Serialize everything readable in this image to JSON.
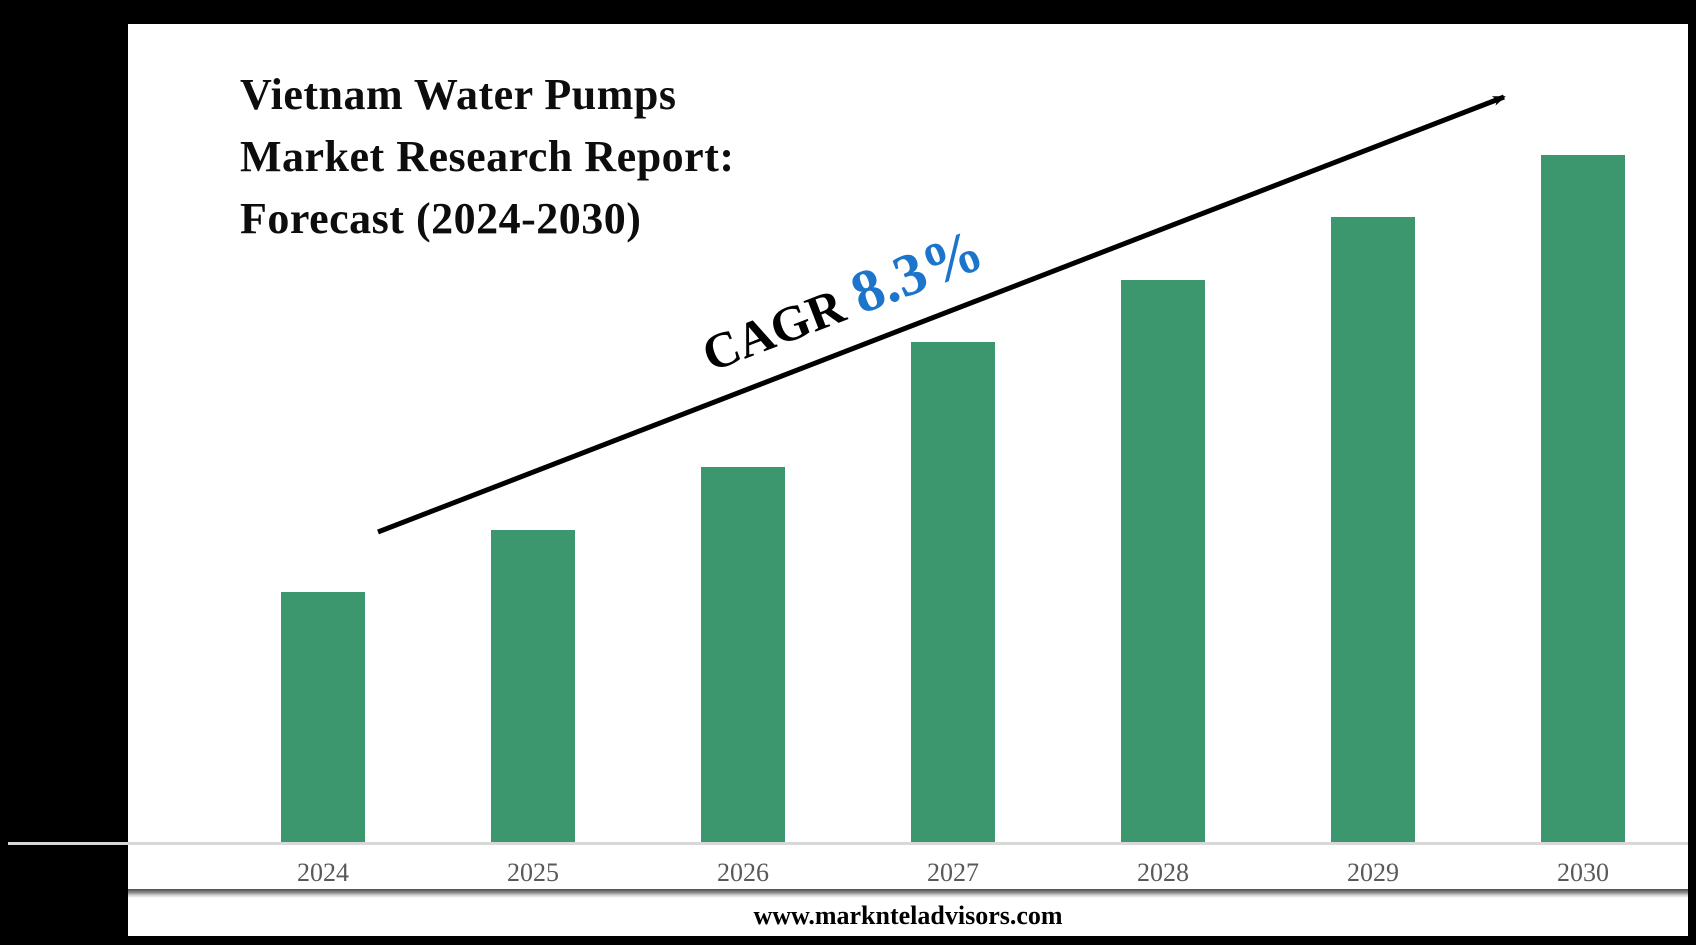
{
  "page": {
    "background_color": "#000000",
    "panel_color": "#ffffff"
  },
  "title": {
    "lines": [
      "Vietnam Water Pumps",
      "Market Research Report:",
      "Forecast (2024-2030)"
    ]
  },
  "annotation": {
    "prefix": "CAGR",
    "value": "8.3%",
    "prefix_color": "#000000",
    "value_color": "#1C74CB"
  },
  "footer": {
    "url": "www.marknteladvisors.com"
  },
  "chart_data": {
    "type": "bar",
    "title": "Vietnam Water Pumps Market Research Report: Forecast (2024-2030)",
    "categories": [
      "2024",
      "2025",
      "2026",
      "2027",
      "2028",
      "2029",
      "2030"
    ],
    "values": [
      4,
      5,
      6,
      8,
      9,
      10,
      11
    ],
    "values_note": "y-axis unlabeled; values are relative bar heights read from pixels",
    "xlabel": "",
    "ylabel": "",
    "ylim": [
      0,
      11.5
    ],
    "grid": false,
    "legend": false,
    "bar_color": "#3C976F",
    "axis_line_color": "#D8D8D8",
    "tick_label_color": "#595959",
    "trend_arrow": {
      "present": true,
      "color": "#000000",
      "label": "CAGR 8.3%"
    }
  }
}
